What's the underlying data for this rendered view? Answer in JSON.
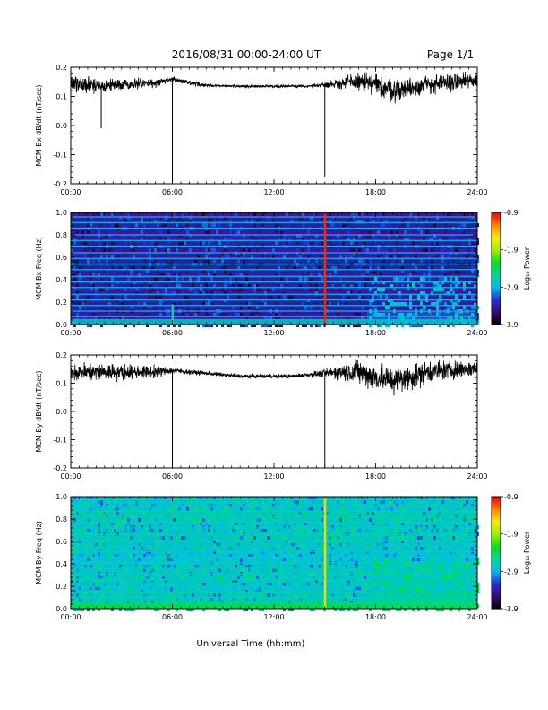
{
  "header": {
    "date_range": "2016/08/31  00:00-24:00 UT",
    "page": "Page 1/1"
  },
  "x_axis": {
    "label": "Universal Time (hh:mm)",
    "range_hours": [
      0,
      24
    ],
    "tick_hours": [
      0,
      6,
      12,
      18,
      24
    ],
    "tick_labels": [
      "00:00",
      "06:00",
      "12:00",
      "18:00",
      "24:00"
    ]
  },
  "colorbar": {
    "label": "Log₁₀ Power",
    "range": [
      -3.9,
      -0.9
    ],
    "tick_values": [
      -0.9,
      -1.9,
      -2.9,
      -3.9
    ],
    "tick_labels": [
      "-0.9",
      "-1.9",
      "-2.9",
      "-3.9"
    ],
    "colors": [
      "#000000",
      "#3a0a6a",
      "#2a2ad8",
      "#00b8f0",
      "#00d6a0",
      "#00e020",
      "#9cf000",
      "#f0f000",
      "#ff8800",
      "#ff0000"
    ]
  },
  "chart_data": [
    {
      "id": "bx-line",
      "type": "line",
      "ylabel": "MCM Bx dB/dt (nT/sec)",
      "ylim": [
        -0.2,
        0.2
      ],
      "y_tick_values": [
        -0.2,
        -0.1,
        0.0,
        0.1,
        0.2
      ],
      "y_tick_labels": [
        "-0.2",
        "-0.1",
        "0.0",
        "0.1",
        "0.2"
      ],
      "envelope": {
        "hours": [
          0,
          1,
          2,
          3,
          4,
          5,
          6,
          7,
          8,
          9,
          10,
          11,
          12,
          13,
          14,
          15,
          16,
          17,
          18,
          19,
          20,
          21,
          22,
          23,
          24
        ],
        "center": [
          0.145,
          0.14,
          0.135,
          0.14,
          0.145,
          0.145,
          0.16,
          0.145,
          0.138,
          0.136,
          0.135,
          0.135,
          0.135,
          0.135,
          0.135,
          0.14,
          0.145,
          0.15,
          0.14,
          0.12,
          0.13,
          0.14,
          0.145,
          0.15,
          0.155
        ],
        "amplitude": [
          0.035,
          0.04,
          0.03,
          0.025,
          0.025,
          0.02,
          0.012,
          0.012,
          0.008,
          0.007,
          0.006,
          0.006,
          0.006,
          0.006,
          0.007,
          0.012,
          0.03,
          0.045,
          0.055,
          0.055,
          0.05,
          0.05,
          0.045,
          0.04,
          0.04
        ]
      },
      "spikes": [
        {
          "hour": 1.8,
          "value": -0.01
        },
        {
          "hour": 6.0,
          "value": -0.2
        },
        {
          "hour": 15.0,
          "value": -0.175
        }
      ]
    },
    {
      "id": "bx-spec",
      "type": "heatmap",
      "ylabel": "MCM Bx Freq (Hz)",
      "ylim": [
        0.0,
        1.0
      ],
      "y_tick_values": [
        0.0,
        0.2,
        0.4,
        0.6,
        0.8,
        1.0
      ],
      "y_tick_labels": [
        "0.0",
        "0.2",
        "0.4",
        "0.6",
        "0.8",
        "1.0"
      ],
      "background_power": -3.4,
      "harmonic_freqs_hz": [
        0.07,
        0.12,
        0.17,
        0.22,
        0.27,
        0.33,
        0.38,
        0.43,
        0.49,
        0.54,
        0.59,
        0.64,
        0.7,
        0.75,
        0.8,
        0.86,
        0.91,
        0.96
      ],
      "harmonic_power": -2.85,
      "low_freq_band": {
        "max_hz": 0.05,
        "power": -2.7
      },
      "active_interval_hours": [
        17.5,
        24
      ],
      "active_power": -2.9,
      "impulses": [
        {
          "hour": 6.0,
          "power": -2.6,
          "max_hz": 0.18
        },
        {
          "hour": 15.0,
          "power": -1.0,
          "max_hz": 1.0
        }
      ]
    },
    {
      "id": "by-line",
      "type": "line",
      "ylabel": "MCM By dB/dt (nT/sec)",
      "ylim": [
        -0.2,
        0.2
      ],
      "y_tick_values": [
        -0.2,
        -0.1,
        0.0,
        0.1,
        0.2
      ],
      "y_tick_labels": [
        "-0.2",
        "-0.1",
        "0.0",
        "0.1",
        "0.2"
      ],
      "envelope": {
        "hours": [
          0,
          1,
          2,
          3,
          4,
          5,
          6,
          7,
          8,
          9,
          10,
          11,
          12,
          13,
          14,
          15,
          16,
          17,
          18,
          19,
          20,
          21,
          22,
          23,
          24
        ],
        "center": [
          0.14,
          0.14,
          0.14,
          0.14,
          0.14,
          0.14,
          0.145,
          0.14,
          0.135,
          0.13,
          0.125,
          0.125,
          0.125,
          0.125,
          0.13,
          0.135,
          0.14,
          0.14,
          0.12,
          0.11,
          0.12,
          0.14,
          0.145,
          0.15,
          0.15
        ],
        "amplitude": [
          0.04,
          0.045,
          0.045,
          0.04,
          0.035,
          0.03,
          0.015,
          0.012,
          0.01,
          0.01,
          0.01,
          0.01,
          0.01,
          0.01,
          0.012,
          0.02,
          0.045,
          0.06,
          0.07,
          0.07,
          0.065,
          0.06,
          0.05,
          0.045,
          0.04
        ]
      },
      "spikes": [
        {
          "hour": 6.0,
          "value": -0.2
        },
        {
          "hour": 15.0,
          "value": -0.2
        }
      ]
    },
    {
      "id": "by-spec",
      "type": "heatmap",
      "ylabel": "MCM By Freq (Hz)",
      "ylim": [
        0.0,
        1.0
      ],
      "y_tick_values": [
        0.0,
        0.2,
        0.4,
        0.6,
        0.8,
        1.0
      ],
      "y_tick_labels": [
        "0.0",
        "0.2",
        "0.4",
        "0.6",
        "0.8",
        "1.0"
      ],
      "background_power": -2.8,
      "harmonic_freqs_hz": [
        0.05,
        0.1,
        0.15,
        0.2,
        0.26,
        0.31,
        0.36,
        0.41,
        0.46,
        0.51,
        0.56,
        0.61,
        0.66,
        0.72,
        0.77,
        0.82,
        0.87,
        0.92,
        0.97
      ],
      "harmonic_power": -2.5,
      "low_freq_band": {
        "max_hz": 0.05,
        "power": -2.3
      },
      "active_interval_hours": [
        17.5,
        24
      ],
      "active_power": -2.5,
      "impulses": [
        {
          "hour": 6.0,
          "power": -2.6,
          "max_hz": 0.1
        },
        {
          "hour": 15.0,
          "power": -1.5,
          "max_hz": 1.0
        }
      ]
    }
  ]
}
